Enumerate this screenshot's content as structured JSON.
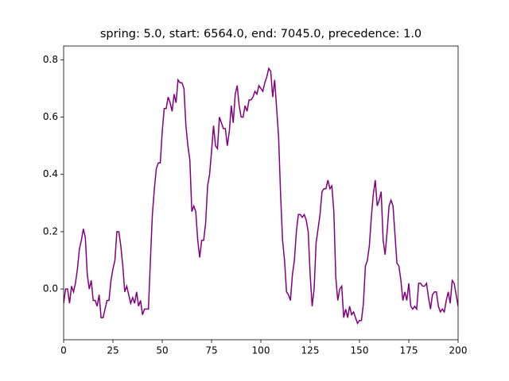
{
  "chart_data": {
    "type": "line",
    "title": "spring: 5.0, start: 6564.0, end: 7045.0, precedence: 1.0",
    "color": "#800080",
    "x": [
      0,
      1,
      2,
      3,
      4,
      5,
      6,
      7,
      8,
      9,
      10,
      11,
      12,
      13,
      14,
      15,
      16,
      17,
      18,
      19,
      20,
      21,
      22,
      23,
      24,
      25,
      26,
      27,
      28,
      29,
      30,
      31,
      32,
      33,
      34,
      35,
      36,
      37,
      38,
      39,
      40,
      41,
      42,
      43,
      44,
      45,
      46,
      47,
      48,
      49,
      50,
      51,
      52,
      53,
      54,
      55,
      56,
      57,
      58,
      59,
      60,
      61,
      62,
      63,
      64,
      65,
      66,
      67,
      68,
      69,
      70,
      71,
      72,
      73,
      74,
      75,
      76,
      77,
      78,
      79,
      80,
      81,
      82,
      83,
      84,
      85,
      86,
      87,
      88,
      89,
      90,
      91,
      92,
      93,
      94,
      95,
      96,
      97,
      98,
      99,
      100,
      101,
      102,
      103,
      104,
      105,
      106,
      107,
      108,
      109,
      110,
      111,
      112,
      113,
      114,
      115,
      116,
      117,
      118,
      119,
      120,
      121,
      122,
      123,
      124,
      125,
      126,
      127,
      128,
      129,
      130,
      131,
      132,
      133,
      134,
      135,
      136,
      137,
      138,
      139,
      140,
      141,
      142,
      143,
      144,
      145,
      146,
      147,
      148,
      149,
      150,
      151,
      152,
      153,
      154,
      155,
      156,
      157,
      158,
      159,
      160,
      161,
      162,
      163,
      164,
      165,
      166,
      167,
      168,
      169,
      170,
      171,
      172,
      173,
      174,
      175,
      176,
      177,
      178,
      179,
      180,
      181,
      182,
      183,
      184,
      185,
      186,
      187,
      188,
      189,
      190,
      191,
      192,
      193,
      194,
      195,
      196,
      197,
      198,
      199,
      200
    ],
    "values": [
      -0.05,
      0.0,
      0.0,
      -0.05,
      0.01,
      -0.01,
      0.02,
      0.07,
      0.14,
      0.17,
      0.21,
      0.18,
      0.05,
      0.0,
      0.03,
      -0.04,
      -0.04,
      -0.06,
      -0.02,
      -0.1,
      -0.1,
      -0.07,
      -0.04,
      -0.04,
      0.03,
      0.07,
      0.1,
      0.2,
      0.2,
      0.15,
      0.08,
      -0.01,
      0.01,
      -0.02,
      -0.05,
      -0.03,
      -0.05,
      -0.01,
      -0.06,
      -0.04,
      -0.09,
      -0.07,
      -0.07,
      -0.07,
      0.1,
      0.26,
      0.35,
      0.42,
      0.44,
      0.44,
      0.55,
      0.63,
      0.63,
      0.67,
      0.65,
      0.62,
      0.68,
      0.65,
      0.73,
      0.72,
      0.72,
      0.7,
      0.57,
      0.5,
      0.45,
      0.27,
      0.29,
      0.27,
      0.17,
      0.11,
      0.17,
      0.17,
      0.23,
      0.36,
      0.4,
      0.48,
      0.57,
      0.5,
      0.49,
      0.6,
      0.58,
      0.56,
      0.56,
      0.5,
      0.55,
      0.64,
      0.58,
      0.68,
      0.71,
      0.64,
      0.6,
      0.6,
      0.64,
      0.62,
      0.66,
      0.66,
      0.67,
      0.69,
      0.68,
      0.71,
      0.7,
      0.69,
      0.72,
      0.74,
      0.77,
      0.76,
      0.67,
      0.73,
      0.63,
      0.53,
      0.33,
      0.17,
      0.1,
      -0.01,
      -0.02,
      -0.04,
      0.05,
      0.1,
      0.2,
      0.26,
      0.26,
      0.25,
      0.26,
      0.24,
      0.2,
      0.05,
      -0.06,
      0.0,
      0.16,
      0.21,
      0.26,
      0.34,
      0.35,
      0.35,
      0.38,
      0.35,
      0.36,
      0.27,
      0.04,
      -0.04,
      0.0,
      0.01,
      -0.1,
      -0.07,
      -0.1,
      -0.06,
      -0.09,
      -0.08,
      -0.1,
      -0.12,
      -0.11,
      -0.11,
      -0.05,
      0.08,
      0.1,
      0.15,
      0.25,
      0.33,
      0.38,
      0.29,
      0.31,
      0.34,
      0.17,
      0.12,
      0.2,
      0.29,
      0.31,
      0.29,
      0.19,
      0.09,
      0.08,
      0.03,
      -0.04,
      -0.01,
      -0.04,
      0.02,
      -0.06,
      -0.07,
      -0.06,
      -0.07,
      0.02,
      0.02,
      0.01,
      0.01,
      0.02,
      -0.03,
      -0.07,
      -0.02,
      -0.01,
      -0.01,
      -0.06,
      -0.08,
      -0.07,
      -0.08,
      -0.04,
      -0.01,
      -0.05,
      0.03,
      0.02,
      -0.02,
      -0.06
    ],
    "xlim": [
      0,
      200
    ],
    "xticks": [
      0,
      25,
      50,
      75,
      100,
      125,
      150,
      175,
      200
    ],
    "ylim": [
      -0.177,
      0.848
    ],
    "yticks": [
      {
        "value": 0,
        "label": "0.0"
      },
      0.2,
      0.4,
      0.6,
      0.8
    ]
  }
}
